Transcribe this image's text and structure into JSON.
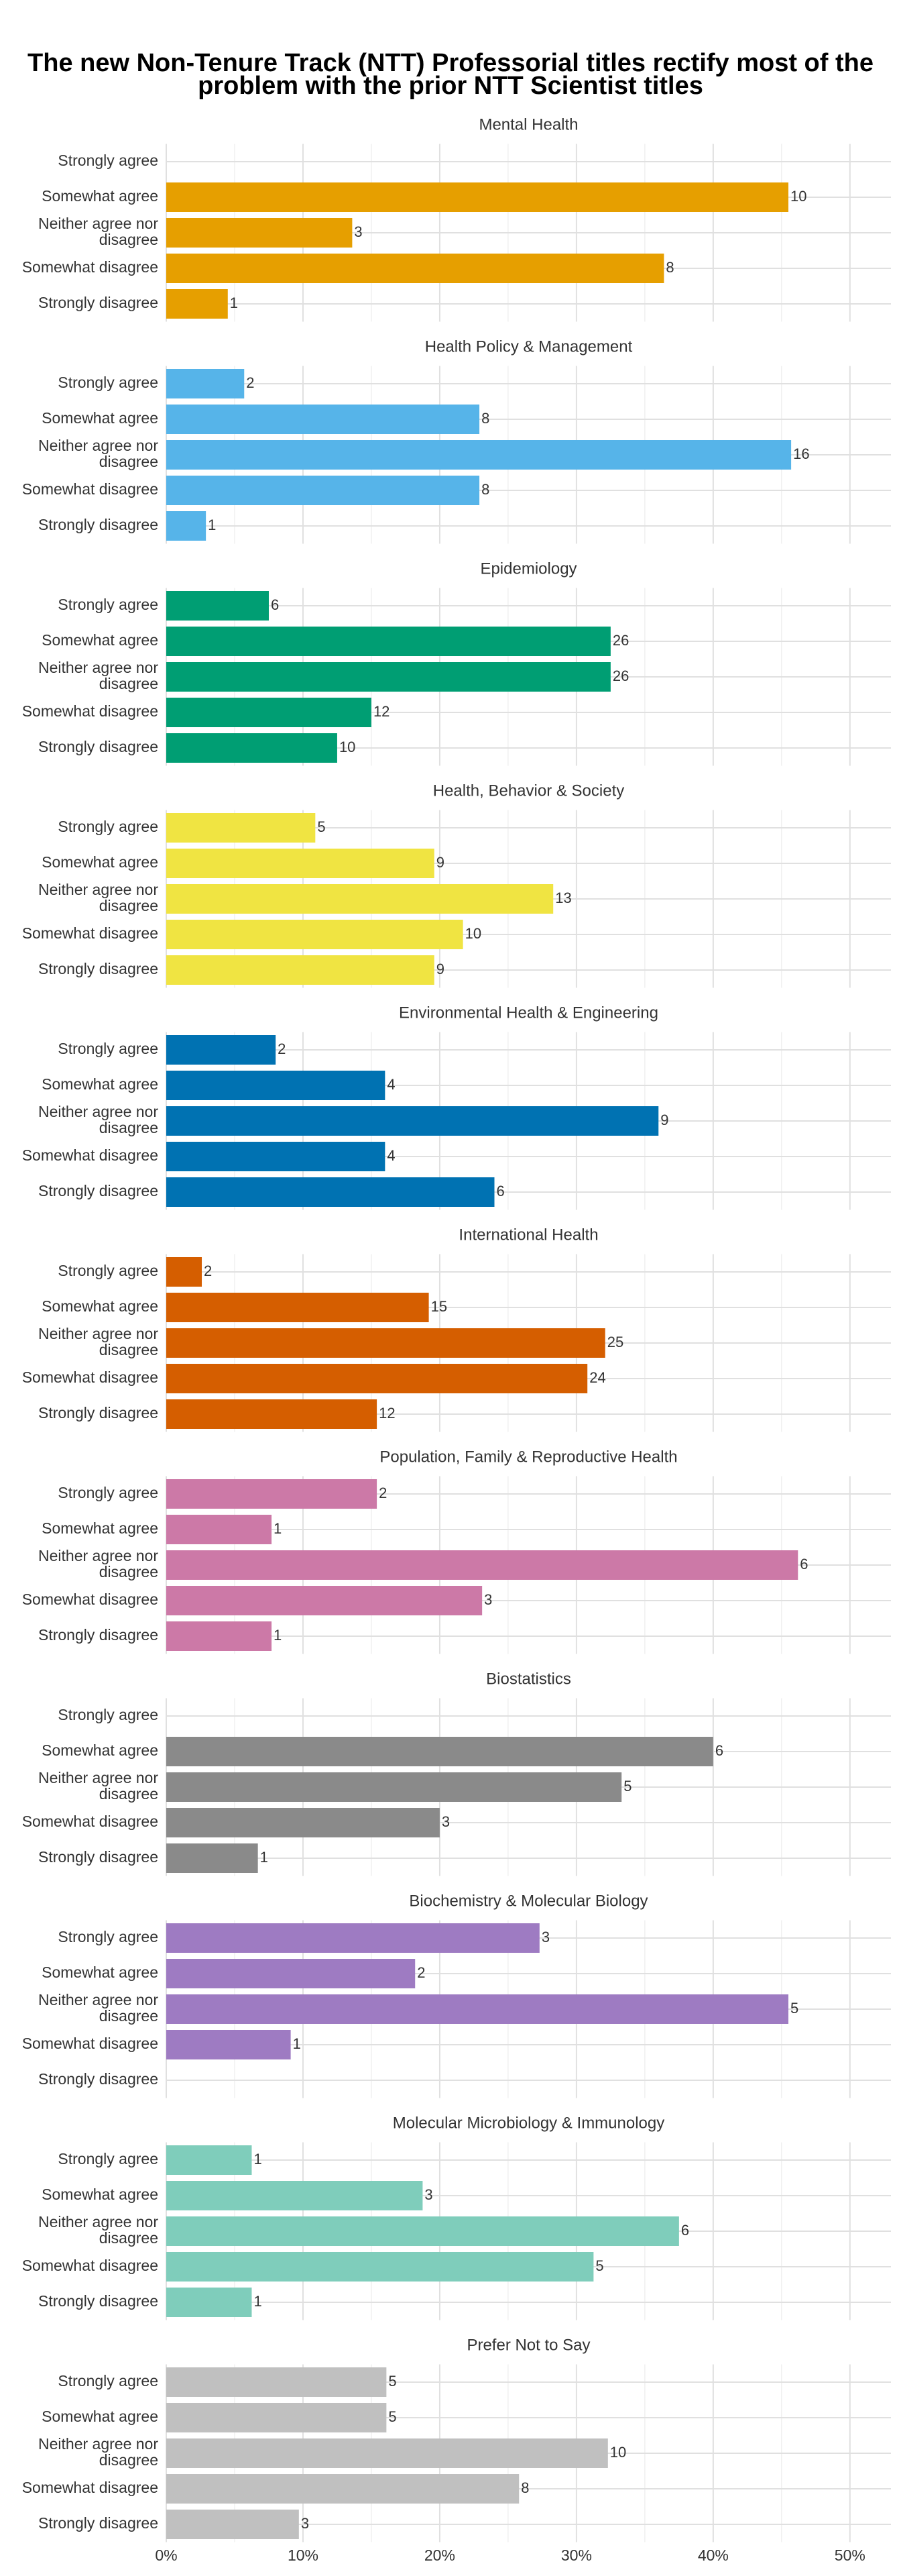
{
  "chart_data": {
    "type": "bar",
    "orientation": "horizontal",
    "title": "The new Non-Tenure Track (NTT) Professorial titles rectify most of the problem with the prior NTT Scientist titles",
    "categories": [
      "Strongly agree",
      "Somewhat agree",
      "Neither agree nor\ndisagree",
      "Somewhat disagree",
      "Strongly disagree"
    ],
    "xlim": [
      0,
      53
    ],
    "xticks": [
      {
        "value": 0,
        "label": "0%"
      },
      {
        "value": 10,
        "label": "10%"
      },
      {
        "value": 20,
        "label": "20%"
      },
      {
        "value": 30,
        "label": "30%"
      },
      {
        "value": 40,
        "label": "40%"
      },
      {
        "value": 50,
        "label": "50%"
      }
    ],
    "minor_xticks": [
      5,
      15,
      25,
      35,
      45
    ],
    "grid": true,
    "facets": [
      {
        "title": "Mental Health",
        "color": "#e69f00",
        "values": [
          null,
          45.5,
          13.6,
          36.4,
          4.5
        ],
        "counts": [
          null,
          10,
          3,
          8,
          1
        ]
      },
      {
        "title": "Health Policy & Management",
        "color": "#56b4e9",
        "values": [
          5.7,
          22.9,
          45.7,
          22.9,
          2.9
        ],
        "counts": [
          2,
          8,
          16,
          8,
          1
        ]
      },
      {
        "title": "Epidemiology",
        "color": "#009e73",
        "values": [
          7.5,
          32.5,
          32.5,
          15,
          12.5
        ],
        "counts": [
          6,
          26,
          26,
          12,
          10
        ]
      },
      {
        "title": "Health, Behavior & Society",
        "color": "#f0e442",
        "values": [
          10.9,
          19.6,
          28.3,
          21.7,
          19.6
        ],
        "counts": [
          5,
          9,
          13,
          10,
          9
        ]
      },
      {
        "title": "Environmental Health & Engineering",
        "color": "#0072b2",
        "values": [
          8,
          16,
          36,
          16,
          24
        ],
        "counts": [
          2,
          4,
          9,
          4,
          6
        ]
      },
      {
        "title": "International Health",
        "color": "#d55e00",
        "values": [
          2.6,
          19.2,
          32.1,
          30.8,
          15.4
        ],
        "counts": [
          2,
          15,
          25,
          24,
          12
        ]
      },
      {
        "title": "Population, Family & Reproductive Health",
        "color": "#cc79a7",
        "values": [
          15.4,
          7.7,
          46.2,
          23.1,
          7.7
        ],
        "counts": [
          2,
          1,
          6,
          3,
          1
        ]
      },
      {
        "title": "Biostatistics",
        "color": "#8a8a8a",
        "values": [
          null,
          40,
          33.3,
          20,
          6.7
        ],
        "counts": [
          null,
          6,
          5,
          3,
          1
        ]
      },
      {
        "title": "Biochemistry & Molecular Biology",
        "color": "#9e7bc2",
        "values": [
          27.3,
          18.2,
          45.5,
          9.1,
          null
        ],
        "counts": [
          3,
          2,
          5,
          1,
          null
        ]
      },
      {
        "title": "Molecular Microbiology & Immunology",
        "color": "#7fcdbb",
        "values": [
          6.25,
          18.75,
          37.5,
          31.25,
          6.25
        ],
        "counts": [
          1,
          3,
          6,
          5,
          1
        ]
      },
      {
        "title": "Prefer Not to Say",
        "color": "#c0c0c0",
        "values": [
          16.1,
          16.1,
          32.3,
          25.8,
          9.7
        ],
        "counts": [
          5,
          5,
          10,
          8,
          3
        ]
      }
    ]
  }
}
